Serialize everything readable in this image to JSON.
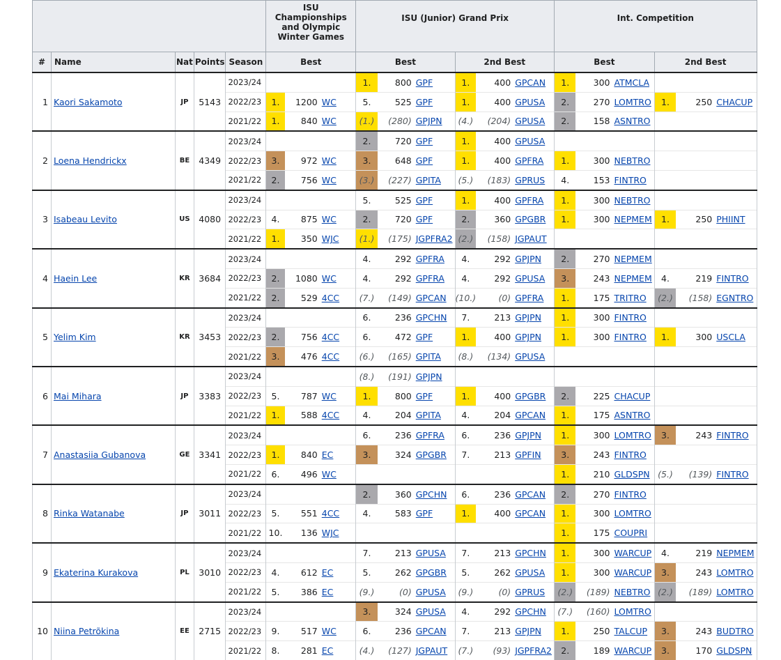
{
  "header": {
    "group1": "ISU Championships and Olympic Winter Games",
    "group2": "ISU (Junior) Grand Prix",
    "group3": "Int. Competition",
    "col_rank": "#",
    "col_name": "Name",
    "col_nat": "Nat",
    "col_points": "Points",
    "col_season": "Season",
    "sub_best1": "Best",
    "sub_best2": "Best",
    "sub_2ndbest2": "2nd Best",
    "sub_best3": "Best",
    "sub_2ndbest3": "2nd Best"
  },
  "colors": {
    "gold": "#ffdf00",
    "silver": "#aaa9ad",
    "bronze": "#c4915a",
    "link": "#0645ad"
  },
  "skaters": [
    {
      "rank": "1",
      "name": "Kaori Sakamoto",
      "nat": "JP",
      "points": "5143",
      "rows": [
        {
          "season": "2023/24",
          "c": [
            null,
            {
              "pl": "1.",
              "pts": "800",
              "ev": "GPF",
              "m": "gold"
            },
            {
              "pl": "1.",
              "pts": "400",
              "ev": "GPCAN",
              "m": "gold"
            },
            {
              "pl": "1.",
              "pts": "300",
              "ev": "ATMCLA",
              "m": "gold"
            },
            null
          ]
        },
        {
          "season": "2022/23",
          "c": [
            {
              "pl": "1.",
              "pts": "1200",
              "ev": "WC",
              "m": "gold"
            },
            {
              "pl": "5.",
              "pts": "525",
              "ev": "GPF"
            },
            {
              "pl": "1.",
              "pts": "400",
              "ev": "GPUSA",
              "m": "gold"
            },
            {
              "pl": "2.",
              "pts": "270",
              "ev": "LOMTRO",
              "m": "silver"
            },
            {
              "pl": "1.",
              "pts": "250",
              "ev": "CHACUP",
              "m": "gold"
            }
          ]
        },
        {
          "season": "2021/22",
          "c": [
            {
              "pl": "1.",
              "pts": "840",
              "ev": "WC",
              "m": "gold"
            },
            {
              "pl": "(1.)",
              "pts": "(280)",
              "ev": "GPJPN",
              "m": "gold",
              "x": true
            },
            {
              "pl": "(4.)",
              "pts": "(204)",
              "ev": "GPUSA",
              "x": true
            },
            {
              "pl": "2.",
              "pts": "158",
              "ev": "ASNTRO",
              "m": "silver"
            },
            null
          ]
        }
      ]
    },
    {
      "rank": "2",
      "name": "Loena Hendrickx",
      "nat": "BE",
      "points": "4349",
      "rows": [
        {
          "season": "2023/24",
          "c": [
            null,
            {
              "pl": "2.",
              "pts": "720",
              "ev": "GPF",
              "m": "silver"
            },
            {
              "pl": "1.",
              "pts": "400",
              "ev": "GPUSA",
              "m": "gold"
            },
            null,
            null
          ]
        },
        {
          "season": "2022/23",
          "c": [
            {
              "pl": "3.",
              "pts": "972",
              "ev": "WC",
              "m": "bronze"
            },
            {
              "pl": "3.",
              "pts": "648",
              "ev": "GPF",
              "m": "bronze"
            },
            {
              "pl": "1.",
              "pts": "400",
              "ev": "GPFRA",
              "m": "gold"
            },
            {
              "pl": "1.",
              "pts": "300",
              "ev": "NEBTRO",
              "m": "gold"
            },
            null
          ]
        },
        {
          "season": "2021/22",
          "c": [
            {
              "pl": "2.",
              "pts": "756",
              "ev": "WC",
              "m": "silver"
            },
            {
              "pl": "(3.)",
              "pts": "(227)",
              "ev": "GPITA",
              "m": "bronze",
              "x": true
            },
            {
              "pl": "(5.)",
              "pts": "(183)",
              "ev": "GPRUS",
              "x": true
            },
            {
              "pl": "4.",
              "pts": "153",
              "ev": "FINTRO"
            },
            null
          ]
        }
      ]
    },
    {
      "rank": "3",
      "name": "Isabeau Levito",
      "nat": "US",
      "points": "4080",
      "rows": [
        {
          "season": "2023/24",
          "c": [
            null,
            {
              "pl": "5.",
              "pts": "525",
              "ev": "GPF"
            },
            {
              "pl": "1.",
              "pts": "400",
              "ev": "GPFRA",
              "m": "gold"
            },
            {
              "pl": "1.",
              "pts": "300",
              "ev": "NEBTRO",
              "m": "gold"
            },
            null
          ]
        },
        {
          "season": "2022/23",
          "c": [
            {
              "pl": "4.",
              "pts": "875",
              "ev": "WC"
            },
            {
              "pl": "2.",
              "pts": "720",
              "ev": "GPF",
              "m": "silver"
            },
            {
              "pl": "2.",
              "pts": "360",
              "ev": "GPGBR",
              "m": "silver"
            },
            {
              "pl": "1.",
              "pts": "300",
              "ev": "NEPMEM",
              "m": "gold"
            },
            {
              "pl": "1.",
              "pts": "250",
              "ev": "PHIINT",
              "m": "gold"
            }
          ]
        },
        {
          "season": "2021/22",
          "c": [
            {
              "pl": "1.",
              "pts": "350",
              "ev": "WJC",
              "m": "gold"
            },
            {
              "pl": "(1.)",
              "pts": "(175)",
              "ev": "JGPFRA2",
              "m": "gold",
              "x": true
            },
            {
              "pl": "(2.)",
              "pts": "(158)",
              "ev": "JGPAUT",
              "m": "silver",
              "x": true
            },
            null,
            null
          ]
        }
      ]
    },
    {
      "rank": "4",
      "name": "Haein Lee",
      "nat": "KR",
      "points": "3684",
      "rows": [
        {
          "season": "2023/24",
          "c": [
            null,
            {
              "pl": "4.",
              "pts": "292",
              "ev": "GPFRA"
            },
            {
              "pl": "4.",
              "pts": "292",
              "ev": "GPJPN"
            },
            {
              "pl": "2.",
              "pts": "270",
              "ev": "NEPMEM",
              "m": "silver"
            },
            null
          ]
        },
        {
          "season": "2022/23",
          "c": [
            {
              "pl": "2.",
              "pts": "1080",
              "ev": "WC",
              "m": "silver"
            },
            {
              "pl": "4.",
              "pts": "292",
              "ev": "GPFRA"
            },
            {
              "pl": "4.",
              "pts": "292",
              "ev": "GPUSA"
            },
            {
              "pl": "3.",
              "pts": "243",
              "ev": "NEPMEM",
              "m": "bronze"
            },
            {
              "pl": "4.",
              "pts": "219",
              "ev": "FINTRO"
            }
          ]
        },
        {
          "season": "2021/22",
          "c": [
            {
              "pl": "2.",
              "pts": "529",
              "ev": "4CC",
              "m": "silver"
            },
            {
              "pl": "(7.)",
              "pts": "(149)",
              "ev": "GPCAN",
              "x": true
            },
            {
              "pl": "(10.)",
              "pts": "(0)",
              "ev": "GPFRA",
              "x": true
            },
            {
              "pl": "1.",
              "pts": "175",
              "ev": "TRITRO",
              "m": "gold"
            },
            {
              "pl": "(2.)",
              "pts": "(158)",
              "ev": "EGNTRO",
              "m": "silver",
              "x": true
            }
          ]
        }
      ]
    },
    {
      "rank": "5",
      "name": "Yelim Kim",
      "nat": "KR",
      "points": "3453",
      "rows": [
        {
          "season": "2023/24",
          "c": [
            null,
            {
              "pl": "6.",
              "pts": "236",
              "ev": "GPCHN"
            },
            {
              "pl": "7.",
              "pts": "213",
              "ev": "GPJPN"
            },
            {
              "pl": "1.",
              "pts": "300",
              "ev": "FINTRO",
              "m": "gold"
            },
            null
          ]
        },
        {
          "season": "2022/23",
          "c": [
            {
              "pl": "2.",
              "pts": "756",
              "ev": "4CC",
              "m": "silver"
            },
            {
              "pl": "6.",
              "pts": "472",
              "ev": "GPF"
            },
            {
              "pl": "1.",
              "pts": "400",
              "ev": "GPJPN",
              "m": "gold"
            },
            {
              "pl": "1.",
              "pts": "300",
              "ev": "FINTRO",
              "m": "gold"
            },
            {
              "pl": "1.",
              "pts": "300",
              "ev": "USCLA",
              "m": "gold"
            }
          ]
        },
        {
          "season": "2021/22",
          "c": [
            {
              "pl": "3.",
              "pts": "476",
              "ev": "4CC",
              "m": "bronze"
            },
            {
              "pl": "(6.)",
              "pts": "(165)",
              "ev": "GPITA",
              "x": true
            },
            {
              "pl": "(8.)",
              "pts": "(134)",
              "ev": "GPUSA",
              "x": true
            },
            null,
            null
          ]
        }
      ]
    },
    {
      "rank": "6",
      "name": "Mai Mihara",
      "nat": "JP",
      "points": "3383",
      "rows": [
        {
          "season": "2023/24",
          "c": [
            null,
            {
              "pl": "(8.)",
              "pts": "(191)",
              "ev": "GPJPN",
              "x": true
            },
            null,
            null,
            null
          ]
        },
        {
          "season": "2022/23",
          "c": [
            {
              "pl": "5.",
              "pts": "787",
              "ev": "WC"
            },
            {
              "pl": "1.",
              "pts": "800",
              "ev": "GPF",
              "m": "gold"
            },
            {
              "pl": "1.",
              "pts": "400",
              "ev": "GPGBR",
              "m": "gold"
            },
            {
              "pl": "2.",
              "pts": "225",
              "ev": "CHACUP",
              "m": "silver"
            },
            null
          ]
        },
        {
          "season": "2021/22",
          "c": [
            {
              "pl": "1.",
              "pts": "588",
              "ev": "4CC",
              "m": "gold"
            },
            {
              "pl": "4.",
              "pts": "204",
              "ev": "GPITA"
            },
            {
              "pl": "4.",
              "pts": "204",
              "ev": "GPCAN"
            },
            {
              "pl": "1.",
              "pts": "175",
              "ev": "ASNTRO",
              "m": "gold"
            },
            null
          ]
        }
      ]
    },
    {
      "rank": "7",
      "name": "Anastasiia Gubanova",
      "nat": "GE",
      "points": "3341",
      "rows": [
        {
          "season": "2023/24",
          "c": [
            null,
            {
              "pl": "6.",
              "pts": "236",
              "ev": "GPFRA"
            },
            {
              "pl": "6.",
              "pts": "236",
              "ev": "GPJPN"
            },
            {
              "pl": "1.",
              "pts": "300",
              "ev": "LOMTRO",
              "m": "gold"
            },
            {
              "pl": "3.",
              "pts": "243",
              "ev": "FINTRO",
              "m": "bronze"
            }
          ]
        },
        {
          "season": "2022/23",
          "c": [
            {
              "pl": "1.",
              "pts": "840",
              "ev": "EC",
              "m": "gold"
            },
            {
              "pl": "3.",
              "pts": "324",
              "ev": "GPGBR",
              "m": "bronze"
            },
            {
              "pl": "7.",
              "pts": "213",
              "ev": "GPFIN"
            },
            {
              "pl": "3.",
              "pts": "243",
              "ev": "FINTRO",
              "m": "bronze"
            },
            null
          ]
        },
        {
          "season": "2021/22",
          "c": [
            {
              "pl": "6.",
              "pts": "496",
              "ev": "WC"
            },
            null,
            null,
            {
              "pl": "1.",
              "pts": "210",
              "ev": "GLDSPN",
              "m": "gold"
            },
            {
              "pl": "(5.)",
              "pts": "(139)",
              "ev": "FINTRO",
              "x": true
            }
          ]
        }
      ]
    },
    {
      "rank": "8",
      "name": "Rinka Watanabe",
      "nat": "JP",
      "points": "3011",
      "rows": [
        {
          "season": "2023/24",
          "c": [
            null,
            {
              "pl": "2.",
              "pts": "360",
              "ev": "GPCHN",
              "m": "silver"
            },
            {
              "pl": "6.",
              "pts": "236",
              "ev": "GPCAN"
            },
            {
              "pl": "2.",
              "pts": "270",
              "ev": "FINTRO",
              "m": "silver"
            },
            null
          ]
        },
        {
          "season": "2022/23",
          "c": [
            {
              "pl": "5.",
              "pts": "551",
              "ev": "4CC"
            },
            {
              "pl": "4.",
              "pts": "583",
              "ev": "GPF"
            },
            {
              "pl": "1.",
              "pts": "400",
              "ev": "GPCAN",
              "m": "gold"
            },
            {
              "pl": "1.",
              "pts": "300",
              "ev": "LOMTRO",
              "m": "gold"
            },
            null
          ]
        },
        {
          "season": "2021/22",
          "c": [
            {
              "pl": "10.",
              "pts": "136",
              "ev": "WJC"
            },
            null,
            null,
            {
              "pl": "1.",
              "pts": "175",
              "ev": "COUPRI",
              "m": "gold"
            },
            null
          ]
        }
      ]
    },
    {
      "rank": "9",
      "name": "Ekaterina Kurakova",
      "nat": "PL",
      "points": "3010",
      "rows": [
        {
          "season": "2023/24",
          "c": [
            null,
            {
              "pl": "7.",
              "pts": "213",
              "ev": "GPUSA"
            },
            {
              "pl": "7.",
              "pts": "213",
              "ev": "GPCHN"
            },
            {
              "pl": "1.",
              "pts": "300",
              "ev": "WARCUP",
              "m": "gold"
            },
            {
              "pl": "4.",
              "pts": "219",
              "ev": "NEPMEM"
            }
          ]
        },
        {
          "season": "2022/23",
          "c": [
            {
              "pl": "4.",
              "pts": "612",
              "ev": "EC"
            },
            {
              "pl": "5.",
              "pts": "262",
              "ev": "GPGBR"
            },
            {
              "pl": "5.",
              "pts": "262",
              "ev": "GPUSA"
            },
            {
              "pl": "1.",
              "pts": "300",
              "ev": "WARCUP",
              "m": "gold"
            },
            {
              "pl": "3.",
              "pts": "243",
              "ev": "LOMTRO",
              "m": "bronze"
            }
          ]
        },
        {
          "season": "2021/22",
          "c": [
            {
              "pl": "5.",
              "pts": "386",
              "ev": "EC"
            },
            {
              "pl": "(9.)",
              "pts": "(0)",
              "ev": "GPUSA",
              "x": true
            },
            {
              "pl": "(9.)",
              "pts": "(0)",
              "ev": "GPRUS",
              "x": true
            },
            {
              "pl": "(2.)",
              "pts": "(189)",
              "ev": "NEBTRO",
              "m": "silver",
              "x": true
            },
            {
              "pl": "(2.)",
              "pts": "(189)",
              "ev": "LOMTRO",
              "m": "silver",
              "x": true
            }
          ]
        }
      ]
    },
    {
      "rank": "10",
      "name": "Niina Petrõkina",
      "nat": "EE",
      "points": "2715",
      "rows": [
        {
          "season": "2023/24",
          "c": [
            null,
            {
              "pl": "3.",
              "pts": "324",
              "ev": "GPUSA",
              "m": "bronze"
            },
            {
              "pl": "4.",
              "pts": "292",
              "ev": "GPCHN"
            },
            {
              "pl": "(7.)",
              "pts": "(160)",
              "ev": "LOMTRO",
              "x": true
            },
            null
          ]
        },
        {
          "season": "2022/23",
          "c": [
            {
              "pl": "9.",
              "pts": "517",
              "ev": "WC"
            },
            {
              "pl": "6.",
              "pts": "236",
              "ev": "GPCAN"
            },
            {
              "pl": "7.",
              "pts": "213",
              "ev": "GPJPN"
            },
            {
              "pl": "1.",
              "pts": "250",
              "ev": "TALCUP",
              "m": "gold"
            },
            {
              "pl": "3.",
              "pts": "243",
              "ev": "BUDTRO",
              "m": "bronze"
            }
          ]
        },
        {
          "season": "2021/22",
          "c": [
            {
              "pl": "8.",
              "pts": "281",
              "ev": "EC"
            },
            {
              "pl": "(4.)",
              "pts": "(127)",
              "ev": "JGPAUT",
              "x": true
            },
            {
              "pl": "(7.)",
              "pts": "(93)",
              "ev": "JGPFRA2",
              "x": true
            },
            {
              "pl": "2.",
              "pts": "189",
              "ev": "WARCUP",
              "m": "silver"
            },
            {
              "pl": "3.",
              "pts": "170",
              "ev": "GLDSPN",
              "m": "bronze"
            }
          ]
        }
      ]
    }
  ]
}
